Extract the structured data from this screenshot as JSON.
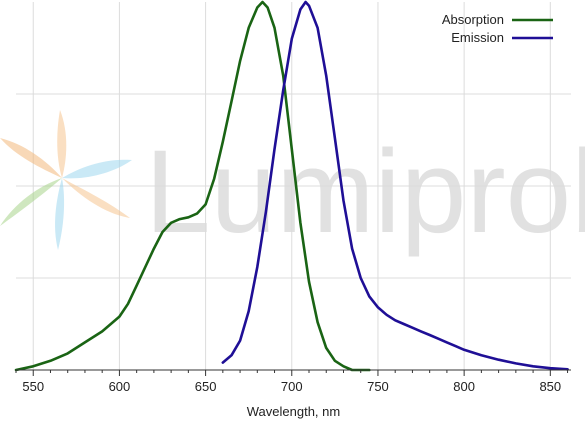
{
  "watermark": {
    "text": "Lumiprobe",
    "petal_colors": [
      "#f6c48f",
      "#9ed7ee",
      "#a8d48a",
      "#f2b87c"
    ]
  },
  "chart_data": {
    "type": "line",
    "title": "",
    "xlabel": "Wavelength, nm",
    "ylabel": "",
    "xlim": [
      540,
      862
    ],
    "ylim": [
      0,
      1
    ],
    "x_ticks": [
      550,
      600,
      650,
      700,
      750,
      800,
      850
    ],
    "y_gridlines": [
      0.25,
      0.5,
      0.75
    ],
    "grid": true,
    "legend_position": "top-right",
    "series": [
      {
        "name": "Absorption",
        "color": "#1a6414",
        "x": [
          540,
          550,
          560,
          570,
          580,
          590,
          600,
          605,
          610,
          615,
          620,
          625,
          630,
          635,
          640,
          645,
          650,
          655,
          660,
          665,
          670,
          675,
          680,
          683,
          686,
          690,
          695,
          700,
          705,
          710,
          715,
          720,
          725,
          730,
          735,
          740,
          745
        ],
        "y": [
          0.0,
          0.01,
          0.025,
          0.045,
          0.075,
          0.105,
          0.145,
          0.18,
          0.23,
          0.28,
          0.33,
          0.375,
          0.4,
          0.41,
          0.415,
          0.425,
          0.45,
          0.52,
          0.62,
          0.73,
          0.84,
          0.93,
          0.985,
          1.0,
          0.985,
          0.93,
          0.8,
          0.6,
          0.4,
          0.24,
          0.13,
          0.06,
          0.025,
          0.01,
          0.0,
          0.0,
          0.0
        ]
      },
      {
        "name": "Emission",
        "color": "#1f0f96",
        "x": [
          660,
          665,
          670,
          675,
          680,
          685,
          690,
          695,
          700,
          705,
          708,
          710,
          715,
          720,
          725,
          730,
          735,
          740,
          745,
          750,
          755,
          760,
          765,
          770,
          775,
          780,
          785,
          790,
          795,
          800,
          810,
          820,
          830,
          840,
          850,
          860
        ],
        "y": [
          0.02,
          0.04,
          0.08,
          0.16,
          0.28,
          0.43,
          0.6,
          0.76,
          0.9,
          0.98,
          1.0,
          0.99,
          0.93,
          0.8,
          0.63,
          0.46,
          0.33,
          0.25,
          0.2,
          0.17,
          0.15,
          0.135,
          0.125,
          0.115,
          0.105,
          0.095,
          0.085,
          0.075,
          0.065,
          0.055,
          0.04,
          0.028,
          0.018,
          0.01,
          0.005,
          0.002
        ]
      }
    ]
  }
}
